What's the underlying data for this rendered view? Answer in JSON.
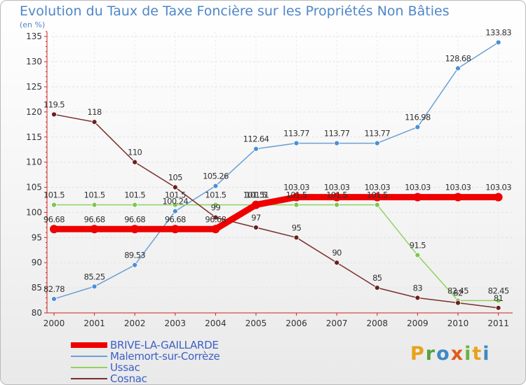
{
  "title": "Evolution du Taux de Taxe Foncière sur les Propriétés Non Bâties",
  "unit_label": "(en %)",
  "logo": {
    "letters": [
      "P",
      "r",
      "o",
      "x",
      "i",
      "t",
      "i"
    ],
    "colors": [
      "#e8a21b",
      "#58a03c",
      "#3f88c5",
      "#e05a1c",
      "#6bb33a",
      "#e8a21b",
      "#3f88c5"
    ]
  },
  "chart_data": {
    "type": "line",
    "title": "Evolution du Taux de Taxe Foncière sur les Propriétés Non Bâties",
    "ylabel": "(en %)",
    "xlabel": "",
    "x": [
      "2000",
      "2001",
      "2002",
      "2003",
      "2004",
      "2005",
      "2006",
      "2007",
      "2008",
      "2009",
      "2010",
      "2011"
    ],
    "ylim": [
      80,
      136
    ],
    "yticks": [
      80,
      85,
      90,
      95,
      100,
      105,
      110,
      115,
      120,
      125,
      130,
      135
    ],
    "grid": true,
    "legend_position": "bottom-left",
    "series": [
      {
        "name": "Malemort-sur-Corrèze",
        "color": "#6c9fd4",
        "marker": "#4a8fd6",
        "values": [
          82.78,
          85.25,
          89.53,
          100.24,
          105.26,
          112.64,
          113.77,
          113.77,
          113.77,
          116.98,
          128.68,
          133.83
        ],
        "labels": [
          "82.78",
          "85.25",
          "89.53",
          "100.24",
          "105.26",
          "112.64",
          "113.77",
          "113.77",
          "113.77",
          "116.98",
          "128.68",
          "133.83"
        ]
      },
      {
        "name": "Ussac",
        "color": "#8ed35f",
        "marker": "#7ec552",
        "values": [
          101.5,
          101.5,
          101.5,
          101.5,
          101.5,
          101.5,
          101.5,
          101.5,
          101.5,
          91.5,
          82.45,
          82.45
        ],
        "labels": [
          "101.5",
          "101.5",
          "101.5",
          "101.5",
          "101.5",
          "101.5",
          "101.5",
          "101.5",
          "101.5",
          "91.5",
          "82.45",
          "82.45"
        ]
      },
      {
        "name": "Cosnac",
        "color": "#7b2e2e",
        "marker": "#6a2020",
        "values": [
          119.5,
          118,
          110,
          105,
          99,
          97,
          95,
          90,
          85,
          83,
          82,
          81
        ],
        "labels": [
          "119.5",
          "118",
          "110",
          "105",
          "99",
          "97",
          "95",
          "90",
          "85",
          "83",
          "82",
          "81"
        ]
      },
      {
        "name": "BRIVE-LA-GAILLARDE",
        "color": "#ee0000",
        "marker": "#ee0000",
        "values": [
          96.68,
          96.68,
          96.68,
          96.68,
          96.68,
          101.51,
          103.03,
          103.03,
          103.03,
          103.03,
          103.03,
          103.03
        ],
        "labels": [
          "96.68",
          "96.68",
          "96.68",
          "96.68",
          "96.68",
          "101.51",
          "103.03",
          "103.03",
          "103.03",
          "103.03",
          "103.03",
          "103.03"
        ]
      }
    ],
    "legend": [
      {
        "name": "BRIVE-LA-GAILLARDE",
        "color": "#ee0000",
        "text_color": "#3c5fc8",
        "thickness": 8
      },
      {
        "name": "Malemort-sur-Corrèze",
        "color": "#6c9fd4",
        "text_color": "#3c5fc8",
        "thickness": 2
      },
      {
        "name": "Ussac",
        "color": "#8ed35f",
        "text_color": "#3c5fc8",
        "thickness": 2
      },
      {
        "name": "Cosnac",
        "color": "#7b2e2e",
        "text_color": "#3c5fc8",
        "thickness": 2
      }
    ]
  }
}
